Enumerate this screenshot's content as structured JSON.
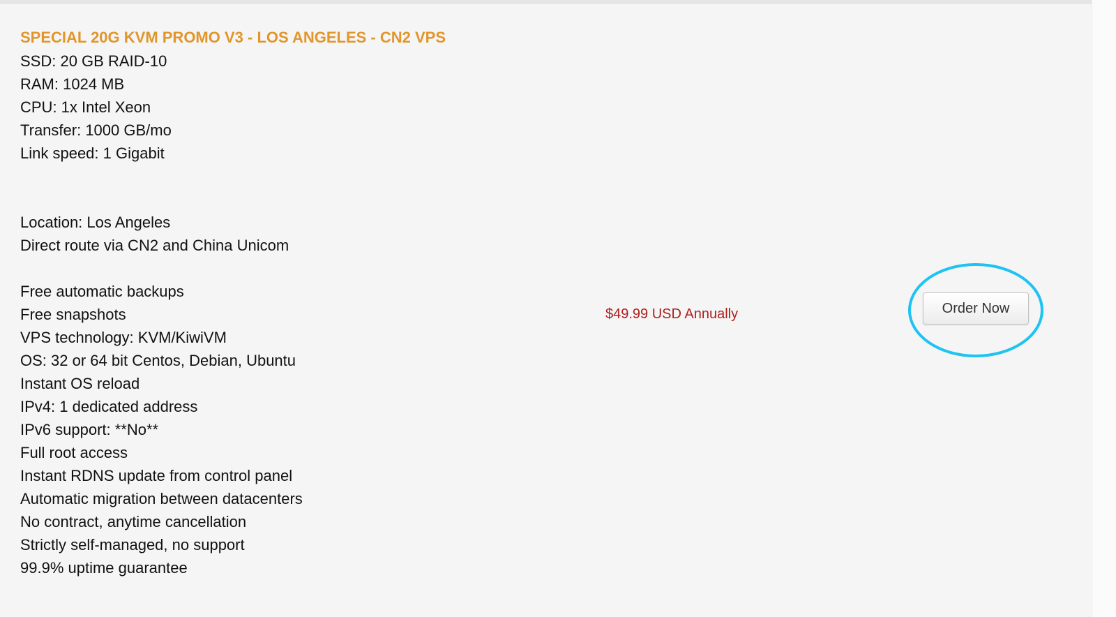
{
  "product": {
    "title": "SPECIAL 20G KVM PROMO V3 - LOS ANGELES - CN2 VPS",
    "specs": [
      "SSD: 20 GB RAID-10",
      "RAM: 1024 MB",
      "CPU: 1x Intel Xeon",
      "Transfer: 1000 GB/mo",
      "Link speed: 1 Gigabit",
      "",
      "",
      "Location: Los Angeles",
      "Direct route via CN2 and China Unicom",
      "",
      "Free automatic backups",
      "Free snapshots",
      "VPS technology: KVM/KiwiVM",
      "OS: 32 or 64 bit Centos, Debian, Ubuntu",
      "Instant OS reload",
      "IPv4: 1 dedicated address",
      "IPv6 support: **No**",
      "Full root access",
      "Instant RDNS update from control panel",
      "Automatic migration between datacenters",
      "No contract, anytime cancellation",
      "Strictly self-managed, no support",
      "99.9% uptime guarantee"
    ],
    "price": "$49.99 USD Annually",
    "order_button": "Order Now"
  },
  "colors": {
    "title": "#e0962a",
    "price": "#b01c1c",
    "highlight_circle": "#1ec3f2"
  }
}
